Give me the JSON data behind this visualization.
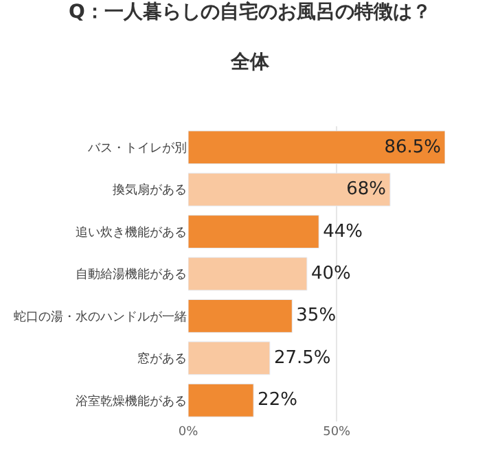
{
  "chart_data": {
    "type": "bar",
    "orientation": "horizontal",
    "title": "Q：一人暮らしの自宅のお風呂の特徴は？",
    "subtitle": "全体",
    "categories": [
      "バス・トイレが別",
      "換気扇がある",
      "追い炊き機能がある",
      "自動給湯機能がある",
      "蛇口の湯・水のハンドルが一緒",
      "窓がある",
      "浴室乾燥機能がある"
    ],
    "values": [
      86.5,
      68,
      44,
      40,
      35,
      27.5,
      22
    ],
    "colors": [
      "#f08a32",
      "#f9c8a0",
      "#f08a32",
      "#f9c8a0",
      "#f08a32",
      "#f9c8a0",
      "#f08a32"
    ],
    "value_labels": [
      "86.5%",
      "68%",
      "44%",
      "40%",
      "35%",
      "27.5%",
      "22%"
    ],
    "xlim": [
      0,
      86.5
    ],
    "xticks": [
      {
        "value": 0,
        "label": "0%"
      },
      {
        "value": 50,
        "label": "50%"
      }
    ],
    "grid": "x"
  }
}
